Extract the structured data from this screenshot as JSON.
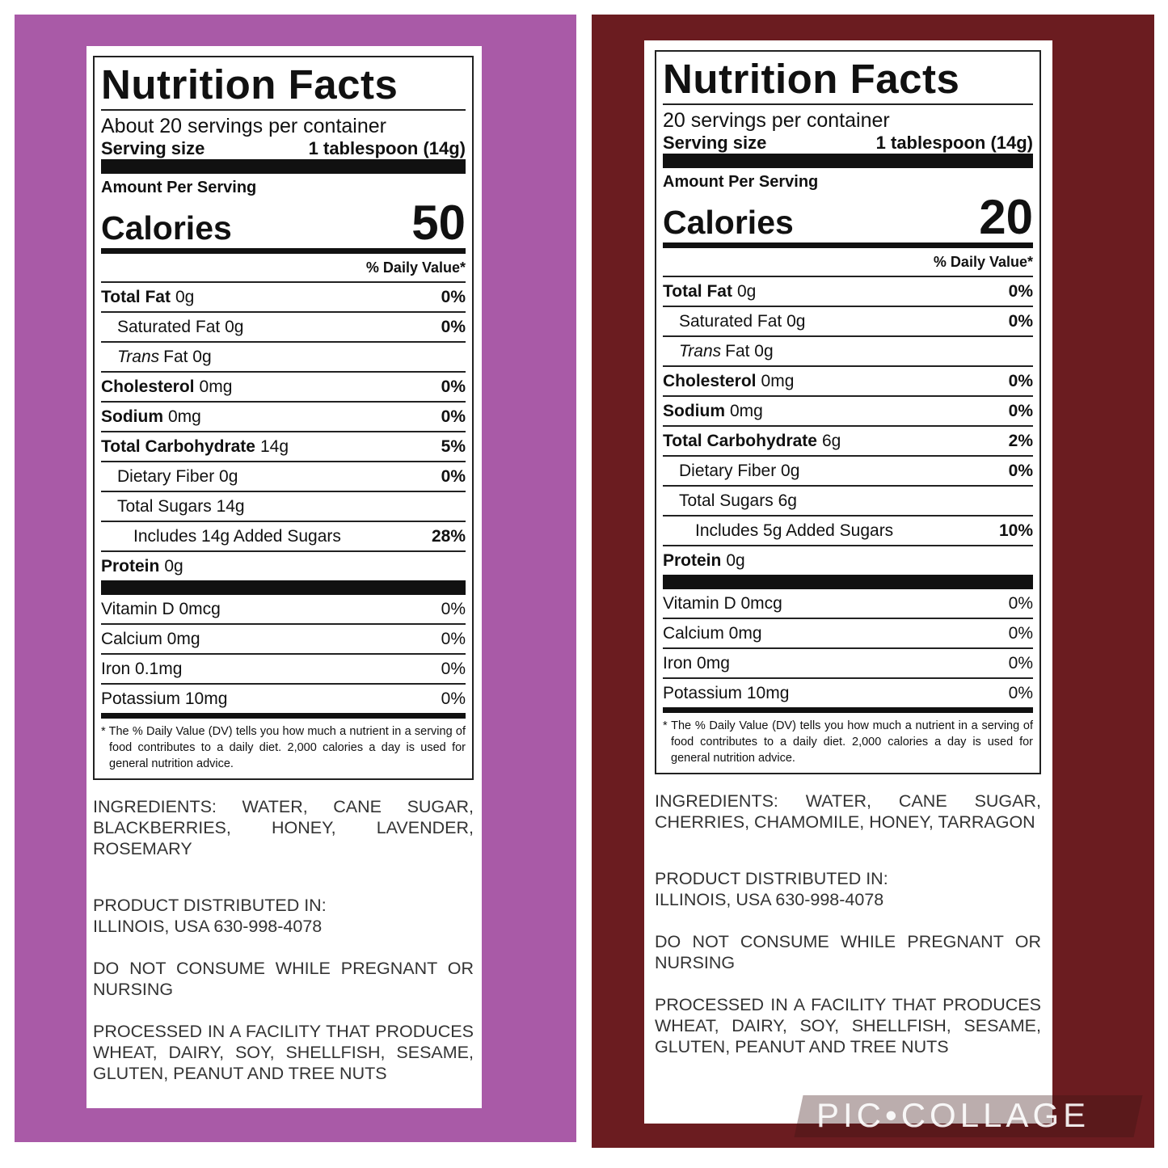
{
  "labels": [
    {
      "title": "Nutrition Facts",
      "servings": "About 20 servings per container",
      "serving_size_label": "Serving size",
      "serving_size_value": "1 tablespoon (14g)",
      "amount_per_serving": "Amount Per Serving",
      "calories_label": "Calories",
      "calories_value": "50",
      "daily_value_header": "% Daily Value*",
      "nutrients": [
        {
          "name": "Total Fat",
          "amount": "0g",
          "dv": "0%"
        },
        {
          "name": "Saturated Fat 0g",
          "dv": "0%"
        },
        {
          "name_italic": "Trans",
          "name": "Fat 0g"
        },
        {
          "name": "Cholesterol",
          "amount": "0mg",
          "dv": "0%"
        },
        {
          "name": "Sodium",
          "amount": "0mg",
          "dv": "0%"
        },
        {
          "name": "Total Carbohydrate",
          "amount": "14g",
          "dv": "5%"
        },
        {
          "name": "Dietary Fiber 0g",
          "dv": "0%"
        },
        {
          "name": "Total Sugars 14g"
        },
        {
          "name": "Includes 14g Added Sugars",
          "dv": "28%"
        },
        {
          "name": "Protein",
          "amount": "0g"
        }
      ],
      "vitamins": [
        {
          "name": "Vitamin D 0mcg",
          "dv": "0%"
        },
        {
          "name": "Calcium 0mg",
          "dv": "0%"
        },
        {
          "name": "Iron 0.1mg",
          "dv": "0%"
        },
        {
          "name": "Potassium 10mg",
          "dv": "0%"
        }
      ],
      "footnote": "* The % Daily Value (DV) tells you how much a nutrient in a serving of food contributes to a daily diet. 2,000 calories a day is used for general nutrition advice.",
      "ingredients": "INGREDIENTS: WATER, CANE SUGAR, BLACKBERRIES, HONEY, LAVENDER, ROSEMARY",
      "distributed": [
        "PRODUCT DISTRIBUTED IN:",
        "ILLINOIS, USA 630-998-4078"
      ],
      "warning": "DO NOT CONSUME WHILE PREGNANT OR NURSING",
      "allergens": "PROCESSED IN A FACILITY THAT PRODUCES WHEAT, DAIRY, SOY, SHELLFISH, SESAME, GLUTEN, PEANUT AND TREE NUTS"
    },
    {
      "title": "Nutrition Facts",
      "servings": "20 servings per container",
      "serving_size_label": "Serving size",
      "serving_size_value": "1 tablespoon (14g)",
      "amount_per_serving": "Amount Per Serving",
      "calories_label": "Calories",
      "calories_value": "20",
      "daily_value_header": "% Daily Value*",
      "nutrients": [
        {
          "name": "Total Fat",
          "amount": "0g",
          "dv": "0%"
        },
        {
          "name": "Saturated Fat 0g",
          "dv": "0%"
        },
        {
          "name_italic": "Trans",
          "name": "Fat 0g"
        },
        {
          "name": "Cholesterol",
          "amount": "0mg",
          "dv": "0%"
        },
        {
          "name": "Sodium",
          "amount": "0mg",
          "dv": "0%"
        },
        {
          "name": "Total Carbohydrate",
          "amount": "6g",
          "dv": "2%"
        },
        {
          "name": "Dietary Fiber 0g",
          "dv": "0%"
        },
        {
          "name": "Total Sugars 6g"
        },
        {
          "name": "Includes 5g Added Sugars",
          "dv": "10%"
        },
        {
          "name": "Protein",
          "amount": "0g"
        }
      ],
      "vitamins": [
        {
          "name": "Vitamin D 0mcg",
          "dv": "0%"
        },
        {
          "name": "Calcium 0mg",
          "dv": "0%"
        },
        {
          "name": "Iron 0mg",
          "dv": "0%"
        },
        {
          "name": "Potassium 10mg",
          "dv": "0%"
        }
      ],
      "footnote": "* The % Daily Value (DV) tells you how much a nutrient in a serving of food contributes to a daily diet. 2,000 calories a day is used for general nutrition advice.",
      "ingredients": "INGREDIENTS: WATER, CANE SUGAR, CHERRIES, CHAMOMILE, HONEY, TARRAGON",
      "distributed": [
        "PRODUCT DISTRIBUTED IN:",
        "ILLINOIS, USA 630-998-4078"
      ],
      "warning": "DO NOT CONSUME WHILE PREGNANT OR NURSING",
      "allergens": "PROCESSED IN A FACILITY THAT PRODUCES WHEAT, DAIRY, SOY, SHELLFISH, SESAME, GLUTEN, PEANUT AND TREE NUTS"
    }
  ],
  "watermark": "PIC•COLLAGE"
}
